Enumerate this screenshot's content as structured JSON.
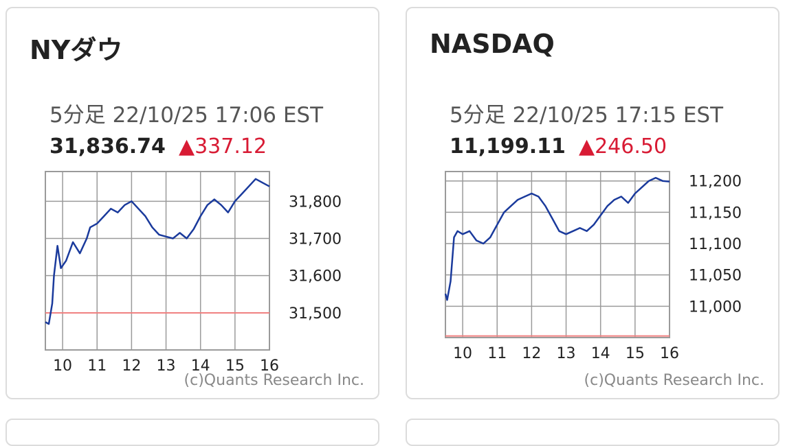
{
  "cards": [
    {
      "title": "NYダウ",
      "meta": "5分足 22/10/25 17:06 EST",
      "value": "31,836.74",
      "change": "▲337.12",
      "credit": "(c)Quants Research Inc."
    },
    {
      "title": "NASDAQ",
      "meta": "5分足 22/10/25 17:15 EST",
      "value": "11,199.11",
      "change": "▲246.50",
      "credit": "(c)Quants Research Inc."
    }
  ],
  "chart_data": [
    {
      "type": "line",
      "x_ticks": [
        "10",
        "11",
        "12",
        "13",
        "14",
        "15",
        "16"
      ],
      "y_ticks": [
        "31,500",
        "31,600",
        "31,700",
        "31,800"
      ],
      "y_tick_values": [
        31500,
        31600,
        31700,
        31800
      ],
      "ylim": [
        31400,
        31880
      ],
      "xlim": [
        9.5,
        16
      ],
      "reference_line": 31499.62,
      "series": [
        {
          "x": [
            9.5,
            9.6,
            9.7,
            9.75,
            9.85,
            9.95,
            10.1,
            10.3,
            10.5,
            10.7,
            10.8,
            11,
            11.2,
            11.4,
            11.6,
            11.8,
            12,
            12.2,
            12.4,
            12.6,
            12.8,
            13,
            13.2,
            13.4,
            13.6,
            13.8,
            14,
            14.2,
            14.4,
            14.6,
            14.8,
            15,
            15.2,
            15.4,
            15.6,
            15.8,
            16
          ],
          "values": [
            31475,
            31470,
            31525,
            31600,
            31680,
            31620,
            31640,
            31690,
            31660,
            31700,
            31730,
            31740,
            31760,
            31780,
            31770,
            31790,
            31800,
            31780,
            31760,
            31730,
            31710,
            31705,
            31700,
            31715,
            31700,
            31725,
            31760,
            31790,
            31805,
            31790,
            31770,
            31800,
            31820,
            31840,
            31860,
            31850,
            31840
          ]
        }
      ]
    },
    {
      "type": "line",
      "x_ticks": [
        "10",
        "11",
        "12",
        "13",
        "14",
        "15",
        "16"
      ],
      "y_ticks": [
        "11,000",
        "11,050",
        "11,100",
        "11,150",
        "11,200"
      ],
      "y_tick_values": [
        11000,
        11050,
        11100,
        11150,
        11200
      ],
      "ylim": [
        10950,
        11215
      ],
      "xlim": [
        9.5,
        16
      ],
      "reference_line": 10952.61,
      "series": [
        {
          "x": [
            9.5,
            9.55,
            9.65,
            9.75,
            9.85,
            10,
            10.2,
            10.4,
            10.6,
            10.8,
            11,
            11.2,
            11.4,
            11.6,
            11.8,
            12,
            12.2,
            12.4,
            12.6,
            12.8,
            13,
            13.2,
            13.4,
            13.6,
            13.8,
            14,
            14.2,
            14.4,
            14.6,
            14.8,
            15,
            15.2,
            15.4,
            15.6,
            15.8,
            16
          ],
          "values": [
            11020,
            11010,
            11040,
            11110,
            11120,
            11115,
            11120,
            11105,
            11100,
            11110,
            11130,
            11150,
            11160,
            11170,
            11175,
            11180,
            11175,
            11160,
            11140,
            11120,
            11115,
            11120,
            11125,
            11120,
            11130,
            11145,
            11160,
            11170,
            11175,
            11165,
            11180,
            11190,
            11200,
            11205,
            11200,
            11199
          ]
        }
      ]
    }
  ],
  "colors": {
    "line": "#1a3a9c",
    "reference": "#f08080",
    "grid": "#9a9a9a",
    "up": "#d81b34"
  }
}
